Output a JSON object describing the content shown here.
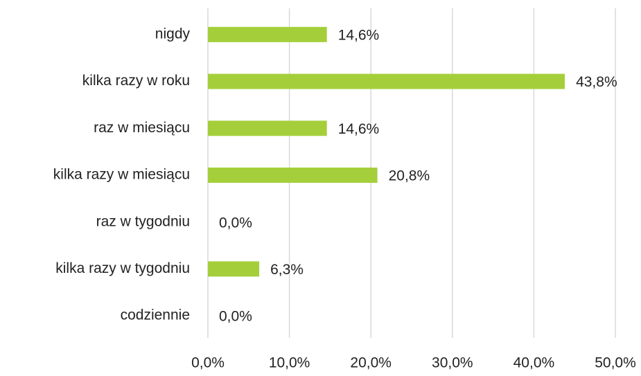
{
  "chart_data": {
    "type": "bar",
    "orientation": "horizontal",
    "categories": [
      "nigdy",
      "kilka razy w roku",
      "raz w miesiącu",
      "kilka razy w miesiącu",
      "raz w tygodniu",
      "kilka razy w tygodniu",
      "codziennie"
    ],
    "values": [
      14.6,
      43.8,
      14.6,
      20.8,
      0.0,
      6.3,
      0.0
    ],
    "value_labels": [
      "14,6%",
      "43,8%",
      "14,6%",
      "20,8%",
      "0,0%",
      "6,3%",
      "0,0%"
    ],
    "color": "#a5cf3a",
    "xlim": [
      0,
      50
    ],
    "xticks": [
      {
        "value": 0,
        "label": "0,0%"
      },
      {
        "value": 10,
        "label": "10,0%"
      },
      {
        "value": 20,
        "label": "20,0%"
      },
      {
        "value": 30,
        "label": "30,0%"
      },
      {
        "value": 40,
        "label": "40,0%"
      },
      {
        "value": 50,
        "label": "50,0%"
      }
    ],
    "grid": true
  }
}
